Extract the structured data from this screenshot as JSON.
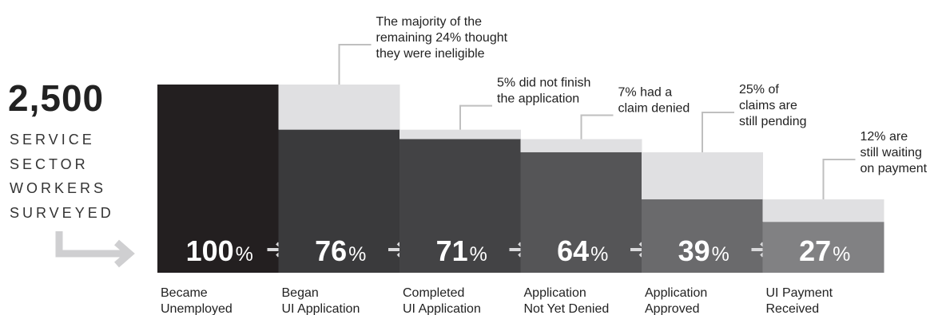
{
  "headline": {
    "total": "2,500",
    "caption": [
      "SERVICE",
      "SECTOR",
      "WORKERS",
      "SURVEYED"
    ]
  },
  "colors": {
    "dark": [
      "#231f20",
      "#3a3a3c",
      "#434345",
      "#555557",
      "#6a6a6c",
      "#818183"
    ],
    "light": "#e0e0e2",
    "arrow": "#cfcfd1",
    "annotation_line": "#bfbfbf"
  },
  "chart_data": {
    "type": "bar",
    "ylim": [
      0,
      100
    ],
    "stages": [
      {
        "label": [
          "Became",
          "Unemployed"
        ],
        "value": 100,
        "pct_number": "100",
        "pct_symbol": "%"
      },
      {
        "label": [
          "Began",
          "UI Application"
        ],
        "value": 76,
        "pct_number": "76",
        "pct_symbol": "%"
      },
      {
        "label": [
          "Completed",
          "UI Application"
        ],
        "value": 71,
        "pct_number": "71",
        "pct_symbol": "%"
      },
      {
        "label": [
          "Application",
          "Not Yet Denied"
        ],
        "value": 64,
        "pct_number": "64",
        "pct_symbol": "%"
      },
      {
        "label": [
          "Application",
          "Approved"
        ],
        "value": 39,
        "pct_number": "39",
        "pct_symbol": "%"
      },
      {
        "label": [
          "UI Payment",
          "Received"
        ],
        "value": 27,
        "pct_number": "27",
        "pct_symbol": "%"
      }
    ],
    "annotations": [
      {
        "text": [
          "The majority of the",
          "remaining 24% thought",
          "they were ineligible"
        ]
      },
      {
        "text": [
          "5% did not finish",
          "the application"
        ]
      },
      {
        "text": [
          "7% had a",
          "claim denied"
        ]
      },
      {
        "text": [
          "25% of",
          "claims are",
          "still pending"
        ]
      },
      {
        "text": [
          "12% are",
          "still waiting",
          "on payment"
        ]
      }
    ]
  }
}
